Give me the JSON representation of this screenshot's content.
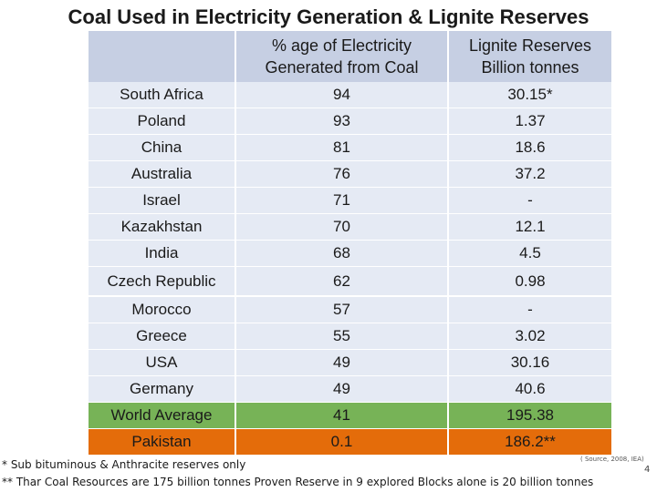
{
  "slide": {
    "title": "Coal Used in Electricity Generation & Lignite Reserves",
    "number": "4"
  },
  "table": {
    "headers": [
      {
        "line1": "",
        "line2": ""
      },
      {
        "line1": "% age of Electricity",
        "line2": "Generated from Coal"
      },
      {
        "line1": "Lignite Reserves",
        "line2": "Billion tonnes"
      }
    ],
    "rows": [
      {
        "country": "South Africa",
        "coal_pct": "94",
        "lignite": "30.15*"
      },
      {
        "country": "Poland",
        "coal_pct": "93",
        "lignite": "1.37"
      },
      {
        "country": "China",
        "coal_pct": "81",
        "lignite": "18.6"
      },
      {
        "country": "Australia",
        "coal_pct": "76",
        "lignite": "37.2"
      },
      {
        "country": "Israel",
        "coal_pct": "71",
        "lignite": "-"
      },
      {
        "country": "Kazakhstan",
        "coal_pct": "70",
        "lignite": "12.1"
      },
      {
        "country": "India",
        "coal_pct": "68",
        "lignite": "4.5"
      },
      {
        "country": "Czech Republic",
        "coal_pct": "62",
        "lignite": "0.98"
      },
      {
        "country": "Morocco",
        "coal_pct": "57",
        "lignite": "-"
      },
      {
        "country": "Greece",
        "coal_pct": "55",
        "lignite": "3.02"
      },
      {
        "country": "USA",
        "coal_pct": "49",
        "lignite": "30.16"
      },
      {
        "country": "Germany",
        "coal_pct": "49",
        "lignite": "40.6"
      },
      {
        "country": "World Average",
        "coal_pct": "41",
        "lignite": "195.38"
      },
      {
        "country": "Pakistan",
        "coal_pct": "0.1",
        "lignite": "186.2**"
      }
    ],
    "highlight_colors": {
      "world_average": "#77b357",
      "pakistan": "#e46c0a",
      "header": "#c6cfe3",
      "body": "#e5eaf4"
    }
  },
  "footnotes": {
    "note1": "* Sub bituminous & Anthracite reserves only",
    "note2": "** Thar Coal Resources are 175 billion tonnes Proven Reserve in 9 explored Blocks alone is 20 billion tonnes",
    "source": "( Source, 2008, IEA)"
  }
}
